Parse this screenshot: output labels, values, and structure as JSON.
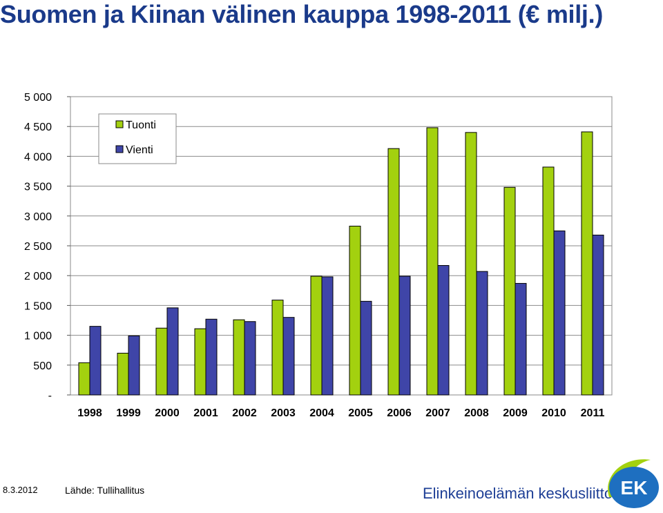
{
  "title": "Suomen ja Kiinan välinen kauppa 1998-2011 (€ milj.)",
  "footer": {
    "date": "8.3.2012",
    "source": "Lähde: Tullihallitus",
    "organization": "Elinkeinoelämän keskusliitto",
    "logo_text": "EK"
  },
  "colors": {
    "tuonti": "#a3d10f",
    "vienti": "#3f45a8",
    "title": "#1a3a8a",
    "brand": "#1e3f96"
  },
  "chart_data": {
    "type": "bar",
    "title": "Suomen ja Kiinan välinen kauppa 1998-2011 (€ milj.)",
    "xlabel": "",
    "ylabel": "",
    "ylim": [
      0,
      5000
    ],
    "grid": true,
    "legend_position": "top-left",
    "y_ticks": [
      {
        "value": 0,
        "label": "-"
      },
      {
        "value": 500,
        "label": "500"
      },
      {
        "value": 1000,
        "label": "1 000"
      },
      {
        "value": 1500,
        "label": "1 500"
      },
      {
        "value": 2000,
        "label": "2 000"
      },
      {
        "value": 2500,
        "label": "2 500"
      },
      {
        "value": 3000,
        "label": "3 000"
      },
      {
        "value": 3500,
        "label": "3 500"
      },
      {
        "value": 4000,
        "label": "4 000"
      },
      {
        "value": 4500,
        "label": "4 500"
      },
      {
        "value": 5000,
        "label": "5 000"
      }
    ],
    "categories": [
      "1998",
      "1999",
      "2000",
      "2001",
      "2002",
      "2003",
      "2004",
      "2005",
      "2006",
      "2007",
      "2008",
      "2009",
      "2010",
      "2011"
    ],
    "series": [
      {
        "name": "Tuonti",
        "color": "#a3d10f",
        "values": [
          540,
          700,
          1120,
          1110,
          1260,
          1590,
          1990,
          2830,
          4130,
          4480,
          4400,
          3480,
          3820,
          4410
        ]
      },
      {
        "name": "Vienti",
        "color": "#3f45a8",
        "values": [
          1150,
          990,
          1460,
          1270,
          1230,
          1300,
          1980,
          1570,
          1990,
          2170,
          2070,
          1870,
          2750,
          2680
        ]
      }
    ]
  }
}
